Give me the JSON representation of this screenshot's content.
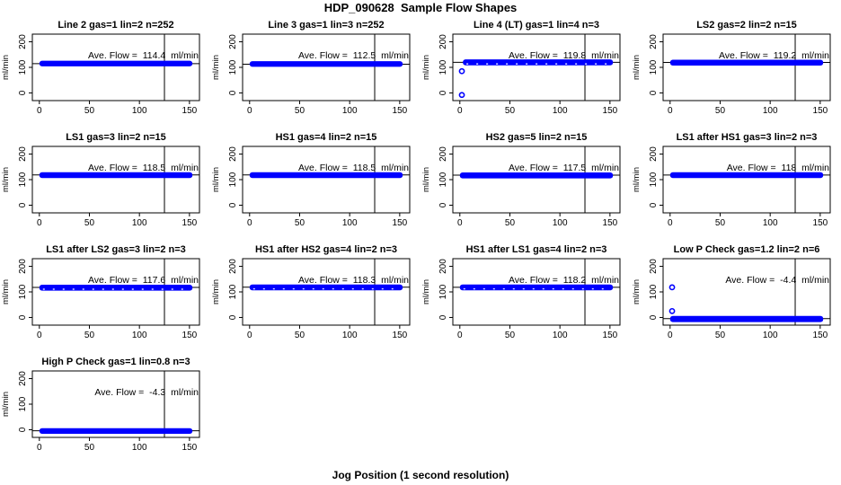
{
  "title": "HDP_090628  Sample Flow Shapes",
  "xlabel": "Jog Position (1 second resolution)",
  "colors": {
    "point_blue": "#0000FF",
    "axis_black": "#000000",
    "background": "#FFFFFF"
  },
  "annotation": {
    "prefix": "Ave. Flow = ",
    "unit": "ml/min"
  },
  "chart_data": {
    "type": "scatter",
    "grid": {
      "rows": 4,
      "cols": 4,
      "panel_count": 13
    },
    "axes": {
      "xticks": [
        0,
        50,
        100,
        150
      ],
      "yticks": [
        0,
        100,
        200
      ],
      "xlim": [
        -7,
        160
      ],
      "ylim": [
        -30,
        230
      ],
      "vline_x": 125,
      "y_axis_label": "ml/min",
      "grid_lines": false,
      "box": true
    },
    "panels": [
      {
        "title": "Line 2 gas=1 lin=2 n=252",
        "ave_flow": 114.4,
        "ave_flow_label": "114.4",
        "band": {
          "x0": 0,
          "x1": 153,
          "y0": 104,
          "y1": 126
        },
        "outliers": [],
        "speckled": false
      },
      {
        "title": "Line 3 gas=1 lin=3 n=252",
        "ave_flow": 112.5,
        "ave_flow_label": "112.5",
        "band": {
          "x0": 0,
          "x1": 153,
          "y0": 102,
          "y1": 124
        },
        "outliers": [],
        "speckled": false
      },
      {
        "title": "Line 4 (LT) gas=1 lin=4 n=3",
        "ave_flow": 119.8,
        "ave_flow_label": "119.8",
        "band": {
          "x0": 3,
          "x1": 153,
          "y0": 108,
          "y1": 131
        },
        "outliers": [
          [
            2,
            -8
          ],
          [
            2,
            85
          ]
        ],
        "speckled": true
      },
      {
        "title": "LS2 gas=2 lin=2 n=15",
        "ave_flow": 119.2,
        "ave_flow_label": "119.2",
        "band": {
          "x0": 0,
          "x1": 153,
          "y0": 107,
          "y1": 130
        },
        "outliers": [],
        "speckled": false
      },
      {
        "title": "LS1 gas=3 lin=2 n=15",
        "ave_flow": 118.5,
        "ave_flow_label": "118.5",
        "band": {
          "x0": 0,
          "x1": 153,
          "y0": 106,
          "y1": 129
        },
        "outliers": [],
        "speckled": false
      },
      {
        "title": "HS1 gas=4 lin=2 n=15",
        "ave_flow": 118.5,
        "ave_flow_label": "118.5",
        "band": {
          "x0": 0,
          "x1": 153,
          "y0": 106,
          "y1": 129
        },
        "outliers": [],
        "speckled": false
      },
      {
        "title": "HS2 gas=5 lin=2 n=15",
        "ave_flow": 117.5,
        "ave_flow_label": "117.5",
        "band": {
          "x0": 0,
          "x1": 153,
          "y0": 105,
          "y1": 128
        },
        "outliers": [],
        "speckled": false
      },
      {
        "title": "LS1 after HS1 gas=3 lin=2 n=3",
        "ave_flow": 118,
        "ave_flow_label": "118",
        "band": {
          "x0": 0,
          "x1": 153,
          "y0": 106,
          "y1": 129
        },
        "outliers": [],
        "speckled": false
      },
      {
        "title": "LS1 after LS2 gas=3 lin=2 n=3",
        "ave_flow": 117.6,
        "ave_flow_label": "117.6",
        "band": {
          "x0": 0,
          "x1": 153,
          "y0": 105,
          "y1": 128
        },
        "outliers": [],
        "speckled": true
      },
      {
        "title": "HS1 after HS2 gas=4 lin=2 n=3",
        "ave_flow": 118.3,
        "ave_flow_label": "118.3",
        "band": {
          "x0": 0,
          "x1": 153,
          "y0": 106,
          "y1": 129
        },
        "outliers": [],
        "speckled": true
      },
      {
        "title": "HS1 after LS1 gas=4 lin=2 n=3",
        "ave_flow": 118.2,
        "ave_flow_label": "118.2",
        "band": {
          "x0": 0,
          "x1": 153,
          "y0": 106,
          "y1": 129
        },
        "outliers": [],
        "speckled": true
      },
      {
        "title": "Low P Check gas=1.2 lin=2 n=6",
        "ave_flow": -4.4,
        "ave_flow_label": "-4.4",
        "band": {
          "x0": 0,
          "x1": 153,
          "y0": -18,
          "y1": 6
        },
        "outliers": [
          [
            2,
            118
          ],
          [
            2,
            25
          ]
        ],
        "speckled": false
      },
      {
        "title": "High P Check gas=1 lin=0.8 n=3",
        "ave_flow": -4.3,
        "ave_flow_label": "-4.3",
        "band": {
          "x0": 0,
          "x1": 153,
          "y0": -16,
          "y1": 6
        },
        "outliers": [],
        "speckled": false
      }
    ]
  }
}
